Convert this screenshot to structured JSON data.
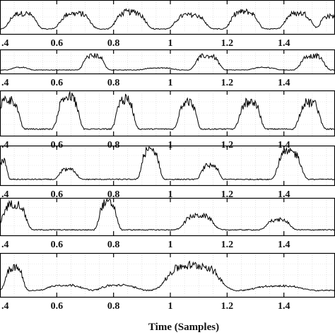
{
  "chart_data": {
    "type": "line",
    "xlabel": "Time (Samples)",
    "xlim": [
      0.4,
      1.58
    ],
    "xticks": [
      0.4,
      0.6,
      0.8,
      1,
      1.2,
      1.4
    ],
    "xtick_labels": [
      ".4",
      "0.6",
      "0.8",
      "1",
      "1.2",
      "1.4"
    ],
    "grid": true,
    "series_color": "#000000",
    "panels": [
      {
        "ylim": [
          0,
          1
        ],
        "peaks": [
          {
            "x": 0.48,
            "w": 0.045,
            "h": 0.55
          },
          {
            "x": 0.665,
            "w": 0.05,
            "h": 0.55
          },
          {
            "x": 0.86,
            "w": 0.05,
            "h": 0.6
          },
          {
            "x": 1.07,
            "w": 0.05,
            "h": 0.5
          },
          {
            "x": 1.26,
            "w": 0.045,
            "h": 0.6
          },
          {
            "x": 1.45,
            "w": 0.045,
            "h": 0.55
          },
          {
            "x": 1.56,
            "w": 0.03,
            "h": 0.45
          }
        ]
      },
      {
        "ylim": [
          0,
          1
        ],
        "peaks": [
          {
            "x": 0.47,
            "w": 0.03,
            "h": 0.12
          },
          {
            "x": 0.73,
            "w": 0.035,
            "h": 0.72
          },
          {
            "x": 0.96,
            "w": 0.05,
            "h": 0.1
          },
          {
            "x": 1.13,
            "w": 0.04,
            "h": 0.7
          },
          {
            "x": 1.33,
            "w": 0.04,
            "h": 0.12
          },
          {
            "x": 1.5,
            "w": 0.04,
            "h": 0.7
          }
        ]
      },
      {
        "ylim": [
          0,
          1
        ],
        "peaks": [
          {
            "x": 0.43,
            "w": 0.035,
            "h": 0.78
          },
          {
            "x": 0.64,
            "w": 0.035,
            "h": 0.85
          },
          {
            "x": 0.84,
            "w": 0.03,
            "h": 0.78
          },
          {
            "x": 1.06,
            "w": 0.03,
            "h": 0.72
          },
          {
            "x": 1.28,
            "w": 0.035,
            "h": 0.72
          },
          {
            "x": 1.49,
            "w": 0.035,
            "h": 0.7
          }
        ]
      },
      {
        "ylim": [
          0,
          1
        ],
        "peaks": [
          {
            "x": 0.41,
            "w": 0.015,
            "h": 0.55
          },
          {
            "x": 0.64,
            "w": 0.03,
            "h": 0.3
          },
          {
            "x": 0.93,
            "w": 0.03,
            "h": 0.88
          },
          {
            "x": 1.14,
            "w": 0.03,
            "h": 0.42
          },
          {
            "x": 1.42,
            "w": 0.04,
            "h": 0.82
          }
        ]
      },
      {
        "ylim": [
          0,
          1
        ],
        "peaks": [
          {
            "x": 0.45,
            "w": 0.04,
            "h": 0.82
          },
          {
            "x": 0.78,
            "w": 0.03,
            "h": 0.86
          },
          {
            "x": 1.1,
            "w": 0.05,
            "h": 0.45
          },
          {
            "x": 1.38,
            "w": 0.04,
            "h": 0.32
          }
        ]
      },
      {
        "ylim": [
          0,
          1
        ],
        "peaks": [
          {
            "x": 0.45,
            "w": 0.03,
            "h": 0.62
          },
          {
            "x": 0.63,
            "w": 0.06,
            "h": 0.14
          },
          {
            "x": 0.82,
            "w": 0.06,
            "h": 0.14
          },
          {
            "x": 1.08,
            "w": 0.09,
            "h": 0.68
          },
          {
            "x": 1.38,
            "w": 0.08,
            "h": 0.12
          }
        ]
      }
    ]
  }
}
